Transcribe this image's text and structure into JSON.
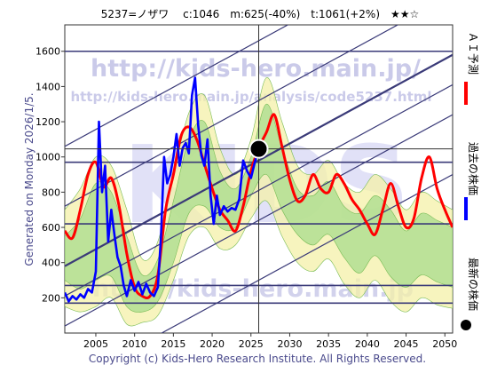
{
  "header": "5237=ノザワ　 c:1046　m:625(-40%)　t:1061(+2%)　★★☆",
  "side_note": "Generated on Monday 2026/1/5.",
  "copyright": "Copyright (c) Kids-Hero Research Institute. All Rights Reserved.",
  "watermark": {
    "url_main": "http://kids-hero.main.jp/",
    "url_analysis": "http://kids-hero.main.jp/analysis/code5237.html",
    "url_bottom": "http://kids-hero.main.jp",
    "logo": "KIDS"
  },
  "legend": [
    {
      "label": "ＡＩ予測",
      "color": "#ff0000"
    },
    {
      "label": "過去の株価",
      "color": "#0000ff"
    },
    {
      "label": "最新の株価",
      "color": "#000000"
    }
  ],
  "chart_data": {
    "type": "line",
    "xlim": [
      2001,
      2051
    ],
    "ylim": [
      0,
      1750
    ],
    "x_ticks": [
      "2005",
      "2010",
      "2015",
      "2020",
      "2025",
      "2030",
      "2035",
      "2040",
      "2045",
      "2050"
    ],
    "y_ticks": [
      "200",
      "400",
      "600",
      "800",
      "1000",
      "1200",
      "1400",
      "1600"
    ],
    "latest_point": {
      "x": 2026.0,
      "y": 1046
    },
    "horizontal_levels": [
      1600,
      970,
      620,
      270,
      170
    ],
    "channel_lines": [
      {
        "from": [
          2001,
          1060
        ],
        "to": [
          2051,
          2260
        ]
      },
      {
        "from": [
          2001,
          720
        ],
        "to": [
          2051,
          1920
        ]
      },
      {
        "from": [
          2001,
          380
        ],
        "to": [
          2051,
          1580
        ]
      },
      {
        "from": [
          2001,
          210
        ],
        "to": [
          2051,
          1410
        ]
      },
      {
        "from": [
          2001,
          40
        ],
        "to": [
          2051,
          1240
        ]
      },
      {
        "from": [
          2001,
          -300
        ],
        "to": [
          2051,
          900
        ]
      }
    ],
    "band_outer": {
      "x": [
        2001,
        2003,
        2005,
        2007,
        2009,
        2011,
        2013,
        2015,
        2017,
        2019,
        2021,
        2023,
        2025,
        2027,
        2029,
        2031,
        2033,
        2035,
        2037,
        2039,
        2041,
        2043,
        2045,
        2047,
        2049,
        2051
      ],
      "upper": [
        700,
        820,
        1000,
        950,
        700,
        420,
        520,
        900,
        1250,
        1350,
        1050,
        900,
        1100,
        1450,
        1200,
        950,
        900,
        980,
        850,
        800,
        900,
        820,
        700,
        800,
        750,
        700
      ],
      "lower": [
        150,
        120,
        150,
        200,
        50,
        60,
        100,
        300,
        550,
        600,
        480,
        500,
        650,
        750,
        550,
        400,
        350,
        420,
        280,
        200,
        300,
        180,
        120,
        200,
        160,
        140
      ]
    },
    "band_inner": {
      "x": [
        2001,
        2003,
        2005,
        2007,
        2009,
        2011,
        2013,
        2015,
        2017,
        2019,
        2021,
        2023,
        2025,
        2027,
        2029,
        2031,
        2033,
        2035,
        2037,
        2039,
        2041,
        2043,
        2045,
        2047,
        2049,
        2051
      ],
      "upper": [
        550,
        650,
        850,
        800,
        550,
        330,
        420,
        750,
        1100,
        1200,
        920,
        820,
        1000,
        1300,
        1050,
        820,
        780,
        860,
        720,
        680,
        780,
        700,
        580,
        680,
        640,
        600
      ],
      "lower": [
        300,
        250,
        300,
        320,
        150,
        120,
        180,
        400,
        680,
        720,
        600,
        600,
        780,
        900,
        700,
        560,
        500,
        560,
        430,
        340,
        440,
        320,
        260,
        330,
        290,
        260
      ]
    },
    "series": [
      {
        "name": "ＡＩ予測",
        "color": "#ff0000",
        "x": [
          2001,
          2002,
          2003,
          2004,
          2005,
          2006,
          2007,
          2008,
          2009,
          2010,
          2011,
          2012,
          2013,
          2014,
          2015,
          2016,
          2017,
          2018,
          2019,
          2020,
          2021,
          2022,
          2023,
          2024,
          2025,
          2026,
          2027,
          2028,
          2029,
          2030,
          2031,
          2032,
          2033,
          2034,
          2035,
          2036,
          2037,
          2038,
          2039,
          2040,
          2041,
          2042,
          2043,
          2044,
          2045,
          2046,
          2047,
          2048,
          2049,
          2050,
          2051
        ],
        "y": [
          580,
          540,
          700,
          900,
          970,
          830,
          880,
          720,
          450,
          260,
          210,
          210,
          330,
          700,
          900,
          1120,
          1170,
          1100,
          960,
          820,
          700,
          640,
          580,
          720,
          920,
          1050,
          1140,
          1240,
          1060,
          870,
          750,
          780,
          900,
          820,
          800,
          900,
          850,
          760,
          700,
          620,
          560,
          700,
          850,
          720,
          600,
          650,
          880,
          1000,
          820,
          700,
          600
        ]
      },
      {
        "name": "過去の株価",
        "color": "#0000ff",
        "x": [
          2001,
          2001.5,
          2002,
          2002.5,
          2003,
          2003.5,
          2004,
          2004.5,
          2005,
          2005.4,
          2005.8,
          2006.2,
          2006.6,
          2007,
          2007.4,
          2007.8,
          2008.2,
          2008.6,
          2009,
          2009.5,
          2010,
          2010.5,
          2011,
          2011.5,
          2012,
          2012.5,
          2013,
          2013.4,
          2013.8,
          2014.2,
          2014.6,
          2015,
          2015.4,
          2015.8,
          2016.2,
          2016.6,
          2017,
          2017.4,
          2017.8,
          2018.2,
          2018.6,
          2019,
          2019.4,
          2019.8,
          2020.2,
          2020.6,
          2021,
          2021.5,
          2022,
          2022.5,
          2023,
          2023.5,
          2024,
          2024.5,
          2025,
          2025.5,
          2026
        ],
        "y": [
          230,
          180,
          210,
          190,
          220,
          200,
          250,
          230,
          350,
          1200,
          800,
          950,
          520,
          700,
          560,
          430,
          380,
          270,
          210,
          300,
          240,
          290,
          220,
          280,
          230,
          210,
          260,
          550,
          1000,
          850,
          900,
          1000,
          1130,
          950,
          1050,
          1080,
          1020,
          1350,
          1450,
          1180,
          1010,
          950,
          1100,
          780,
          620,
          780,
          670,
          720,
          690,
          710,
          700,
          760,
          980,
          920,
          880,
          970,
          1046
        ]
      }
    ]
  }
}
